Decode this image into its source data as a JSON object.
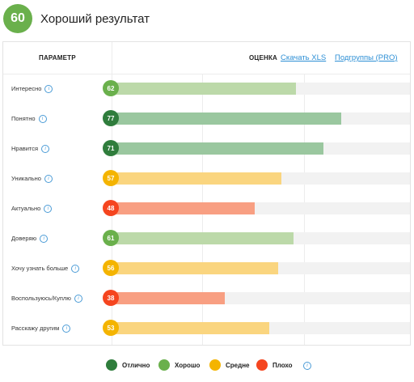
{
  "header": {
    "score": "60",
    "title": "Хороший результат",
    "score_color": "#6ab04c"
  },
  "table": {
    "param_header": "ПАРАМЕТР",
    "score_header": "ОЦЕНКА",
    "download_link": "Скачать XLS",
    "subgroups_link": "Подгруппы (PRO)",
    "info_icon": "i",
    "scale_max": 100,
    "rows": [
      {
        "label": "Интересно",
        "value": "62",
        "level": "good"
      },
      {
        "label": "Понятно",
        "value": "77",
        "level": "excellent"
      },
      {
        "label": "Нравится",
        "value": "71",
        "level": "excellent"
      },
      {
        "label": "Уникально",
        "value": "57",
        "level": "average"
      },
      {
        "label": "Актуально",
        "value": "48",
        "level": "bad"
      },
      {
        "label": "Доверяю",
        "value": "61",
        "level": "good"
      },
      {
        "label": "Хочу узнать больше",
        "value": "56",
        "level": "average"
      },
      {
        "label": "Воспользуюсь/Куплю",
        "value": "38",
        "level": "bad"
      },
      {
        "label": "Расскажу другим",
        "value": "53",
        "level": "average"
      }
    ]
  },
  "levels": {
    "excellent": {
      "badge": "#2f7d3c",
      "bar": "#9ac79f"
    },
    "good": {
      "badge": "#6ab04c",
      "bar": "#bcd9a9"
    },
    "average": {
      "badge": "#f4b400",
      "bar": "#fad57f"
    },
    "bad": {
      "badge": "#f5451f",
      "bar": "#f89f82"
    }
  },
  "legend": [
    {
      "label": "Отлично",
      "color": "#2f7d3c"
    },
    {
      "label": "Хорошо",
      "color": "#6ab04c"
    },
    {
      "label": "Средне",
      "color": "#f4b400"
    },
    {
      "label": "Плохо",
      "color": "#f5451f"
    }
  ]
}
